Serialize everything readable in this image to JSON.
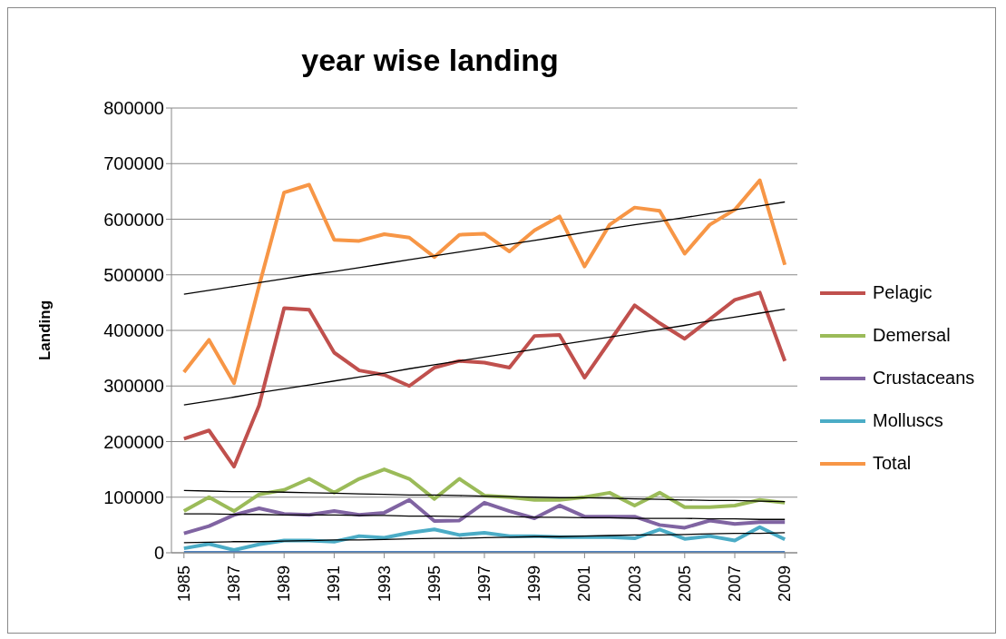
{
  "chart_data": {
    "type": "line",
    "title": "year wise landing",
    "ylabel": "Landing",
    "x": [
      1985,
      1986,
      1987,
      1988,
      1989,
      1990,
      1991,
      1992,
      1993,
      1994,
      1995,
      1996,
      1997,
      1998,
      1999,
      2000,
      2001,
      2002,
      2003,
      2004,
      2005,
      2006,
      2007,
      2008,
      2009
    ],
    "xlim": [
      1984.5,
      2009.5
    ],
    "xticks": [
      1985,
      1987,
      1989,
      1991,
      1993,
      1995,
      1997,
      1999,
      2001,
      2003,
      2005,
      2007,
      2009
    ],
    "ylim": [
      0,
      800000
    ],
    "yticks": [
      0,
      100000,
      200000,
      300000,
      400000,
      500000,
      600000,
      700000,
      800000
    ],
    "grid": "y",
    "legend": "right",
    "marker": "none",
    "line_style": "solid",
    "series": [
      {
        "name": "Pelagic",
        "color": "#c0504d",
        "values": [
          205000,
          220000,
          155000,
          265000,
          440000,
          437000,
          360000,
          328000,
          320000,
          300000,
          333000,
          345000,
          342000,
          333000,
          390000,
          392000,
          315000,
          380000,
          445000,
          413000,
          385000,
          420000,
          455000,
          468000,
          345000
        ]
      },
      {
        "name": "Demersal",
        "color": "#9bbb59",
        "values": [
          75000,
          100000,
          75000,
          105000,
          113000,
          133000,
          108000,
          133000,
          150000,
          133000,
          97000,
          133000,
          103000,
          100000,
          95000,
          95000,
          100000,
          108000,
          85000,
          108000,
          82000,
          82000,
          85000,
          95000,
          90000
        ]
      },
      {
        "name": "Crustaceans",
        "color": "#8064a2",
        "values": [
          35000,
          48000,
          68000,
          80000,
          70000,
          68000,
          75000,
          68000,
          72000,
          95000,
          57000,
          58000,
          90000,
          75000,
          62000,
          85000,
          65000,
          65000,
          65000,
          50000,
          45000,
          58000,
          52000,
          55000,
          55000
        ]
      },
      {
        "name": "Molluscs",
        "color": "#4bacc6",
        "values": [
          8000,
          16000,
          5000,
          15000,
          22000,
          22000,
          20000,
          30000,
          27000,
          36000,
          42000,
          32000,
          36000,
          30000,
          30000,
          28000,
          28000,
          28000,
          26000,
          42000,
          25000,
          30000,
          22000,
          46000,
          24000
        ]
      },
      {
        "name": "Total",
        "color": "#f79646",
        "values": [
          325000,
          383000,
          305000,
          480000,
          648000,
          662000,
          563000,
          561000,
          573000,
          567000,
          532000,
          572000,
          574000,
          542000,
          580000,
          605000,
          515000,
          590000,
          621000,
          615000,
          538000,
          590000,
          617000,
          670000,
          518000
        ]
      },
      {
        "color": "#4f81bd",
        "values": [
          0,
          0,
          0,
          0,
          0,
          0,
          0,
          0,
          0,
          0,
          0,
          0,
          0,
          0,
          0,
          0,
          0,
          0,
          0,
          0,
          0,
          0,
          0,
          0,
          0
        ]
      },
      {
        "type": "line",
        "color": "#000000",
        "values": [
          266000,
          273000,
          280000,
          288000,
          295000,
          302000,
          309000,
          316000,
          323000,
          331000,
          338000,
          345000,
          352000,
          359000,
          366000,
          374000,
          381000,
          388000,
          395000,
          402000,
          409000,
          417000,
          424000,
          431000,
          438000
        ]
      },
      {
        "type": "line",
        "color": "#000000",
        "values": [
          112000,
          111000,
          110000,
          110000,
          109000,
          108000,
          107000,
          106000,
          105000,
          104000,
          104000,
          103000,
          102000,
          101000,
          100000,
          99000,
          99000,
          98000,
          97000,
          96000,
          95000,
          94000,
          94000,
          93000,
          92000
        ]
      },
      {
        "type": "line",
        "color": "#000000",
        "values": [
          70000,
          70000,
          69000,
          69000,
          68000,
          68000,
          68000,
          67000,
          67000,
          66000,
          66000,
          65000,
          65000,
          65000,
          64000,
          64000,
          63000,
          63000,
          62000,
          62000,
          62000,
          61000,
          61000,
          60000,
          60000
        ]
      },
      {
        "type": "line",
        "color": "#000000",
        "values": [
          18000,
          19000,
          20000,
          20000,
          21000,
          22000,
          23000,
          23000,
          24000,
          25000,
          26000,
          26000,
          27000,
          28000,
          29000,
          29000,
          30000,
          31000,
          32000,
          32000,
          33000,
          34000,
          35000,
          35000,
          36000
        ]
      },
      {
        "type": "line",
        "color": "#000000",
        "values": [
          465000,
          472000,
          479000,
          486000,
          493000,
          500000,
          506000,
          513000,
          520000,
          527000,
          534000,
          541000,
          548000,
          555000,
          562000,
          569000,
          576000,
          583000,
          590000,
          596000,
          603000,
          610000,
          617000,
          624000,
          631000
        ]
      }
    ]
  }
}
